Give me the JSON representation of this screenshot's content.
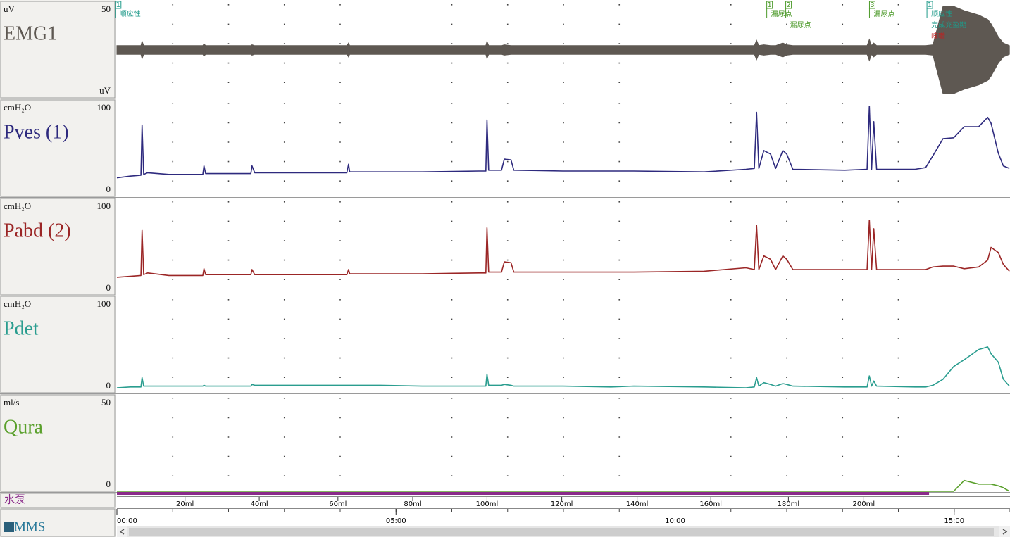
{
  "time_axis": {
    "xlim": [
      0,
      16
    ],
    "ticks": [
      {
        "value": 0,
        "label": "00:00"
      },
      {
        "value": 5,
        "label": "05:00"
      },
      {
        "value": 10,
        "label": "10:00"
      },
      {
        "value": 15,
        "label": "15:00"
      }
    ],
    "volume_ticks": [
      {
        "value": 1.22,
        "label": "20ml"
      },
      {
        "value": 2.55,
        "label": "40ml"
      },
      {
        "value": 3.96,
        "label": "60ml"
      },
      {
        "value": 5.3,
        "label": "80ml"
      },
      {
        "value": 6.63,
        "label": "100ml"
      },
      {
        "value": 7.97,
        "label": "120ml"
      },
      {
        "value": 9.32,
        "label": "140ml"
      },
      {
        "value": 10.64,
        "label": "160ml"
      },
      {
        "value": 12.03,
        "label": "180ml"
      },
      {
        "value": 13.38,
        "label": "200ml"
      }
    ],
    "grid": true
  },
  "t": [
    0.0,
    0.24,
    0.43,
    0.45,
    0.48,
    0.55,
    0.93,
    1.54,
    1.56,
    1.59,
    2.07,
    2.4,
    2.42,
    2.47,
    2.95,
    4.12,
    4.15,
    4.17,
    4.72,
    5.47,
    6.48,
    6.61,
    6.63,
    6.66,
    6.89,
    6.94,
    7.06,
    7.11,
    7.99,
    8.85,
    9.26,
    10.52,
    11.27,
    11.42,
    11.46,
    11.5,
    11.59,
    11.71,
    11.8,
    11.93,
    12.0,
    12.11,
    13.04,
    13.44,
    13.48,
    13.52,
    13.56,
    13.61,
    14.3,
    14.49,
    14.62,
    14.8,
    14.99,
    15.18,
    15.44,
    15.6,
    15.66,
    15.79,
    15.88,
    15.99
  ],
  "channels": [
    {
      "name": "EMG1",
      "unit": "uV",
      "unit_bottom": "uV",
      "color": "#5e5852",
      "style": "envelope",
      "ylim": [
        -50,
        50
      ],
      "values": [
        5,
        5,
        5,
        10,
        5,
        5,
        5,
        5,
        7,
        5,
        5,
        5,
        6,
        5,
        5,
        5,
        8,
        5,
        5,
        5,
        5,
        5,
        10,
        5,
        5,
        6,
        5,
        5,
        5,
        5,
        5,
        5,
        5,
        5,
        11,
        5,
        6,
        5,
        5,
        8,
        6,
        5,
        5,
        5,
        12,
        5,
        8,
        5,
        5,
        5,
        6,
        50,
        50,
        45,
        40,
        35,
        30,
        15,
        8,
        5
      ]
    },
    {
      "name": "Pves (1)",
      "unit": "cmH₂O",
      "color": "#2e2a7e",
      "style": "line",
      "ylim": [
        0,
        100
      ],
      "values": [
        16,
        18,
        19,
        78,
        20,
        22,
        20,
        20,
        30,
        21,
        21,
        21,
        30,
        22,
        22,
        22,
        32,
        23,
        23,
        23,
        24,
        24,
        84,
        25,
        25,
        38,
        37,
        25,
        24,
        24,
        24,
        23,
        26,
        27,
        93,
        27,
        48,
        44,
        27,
        48,
        44,
        26,
        25,
        26,
        100,
        26,
        82,
        26,
        26,
        28,
        42,
        62,
        63,
        76,
        76,
        87,
        80,
        45,
        30,
        27
      ]
    },
    {
      "name": "Pabd (2)",
      "unit": "cmH₂O",
      "color": "#9b2626",
      "style": "line",
      "ylim": [
        0,
        100
      ],
      "values": [
        15,
        16,
        17,
        70,
        18,
        20,
        17,
        17,
        25,
        18,
        18,
        18,
        24,
        18,
        18,
        18,
        24,
        19,
        19,
        19,
        20,
        20,
        73,
        21,
        21,
        33,
        32,
        21,
        21,
        21,
        21,
        22,
        26,
        24,
        76,
        24,
        40,
        36,
        24,
        40,
        36,
        24,
        24,
        24,
        82,
        24,
        72,
        24,
        24,
        24,
        27,
        28,
        28,
        25,
        27,
        35,
        50,
        44,
        30,
        22
      ]
    },
    {
      "name": "Pdet",
      "unit": "cmH₂O",
      "color": "#2a9d8f",
      "style": "line",
      "ylim": [
        0,
        100
      ],
      "values": [
        0,
        1,
        1,
        12,
        2,
        2,
        2,
        2,
        3,
        2,
        2,
        2,
        4,
        3,
        3,
        3,
        3,
        3,
        3,
        2,
        2,
        2,
        16,
        3,
        3,
        4,
        3,
        2,
        2,
        1,
        2,
        1,
        0,
        1,
        12,
        2,
        6,
        4,
        2,
        5,
        4,
        2,
        1,
        1,
        14,
        2,
        8,
        2,
        1,
        1,
        3,
        10,
        25,
        33,
        45,
        48,
        40,
        30,
        10,
        2
      ]
    },
    {
      "name": "Qura",
      "unit": "ml/s",
      "color": "#5aa02c",
      "style": "line",
      "ylim": [
        0,
        50
      ],
      "values": [
        0,
        0,
        0,
        0,
        0,
        0,
        0,
        0,
        0,
        0,
        0,
        0,
        0,
        0,
        0,
        0,
        0,
        0,
        0,
        0,
        0,
        0,
        0,
        0,
        0,
        0,
        0,
        0,
        0,
        0,
        0,
        0,
        0,
        0,
        0,
        0,
        0,
        0,
        0,
        0,
        0,
        0,
        0,
        0,
        0,
        0,
        0,
        0,
        0,
        0,
        0,
        0,
        0,
        6,
        4,
        4,
        4,
        3,
        2,
        0
      ]
    }
  ],
  "events": [
    {
      "t": 0.01,
      "marker": "1",
      "labels": [
        "顺应性"
      ],
      "label_colors": [
        "#1f9a8a"
      ],
      "color": "#1f9a8a"
    },
    {
      "t": 11.68,
      "marker": "1",
      "labels": [
        "漏尿点"
      ],
      "label_colors": [
        "#4c9a2a"
      ],
      "color": "#4c9a2a"
    },
    {
      "t": 12.02,
      "marker": "2",
      "labels": [
        "漏尿点"
      ],
      "label_colors": [
        "#4c9a2a"
      ],
      "color": "#4c9a2a"
    },
    {
      "t": 13.52,
      "marker": "3",
      "labels": [
        "漏尿点"
      ],
      "label_colors": [
        "#4c9a2a"
      ],
      "color": "#4c9a2a"
    },
    {
      "t": 14.55,
      "marker": "1",
      "labels": [
        "顺应性",
        "完成充盈期",
        "咳嗽"
      ],
      "label_colors": [
        "#1f9a8a",
        "#1f9a8a",
        "#c02020"
      ],
      "color": "#1f9a8a"
    }
  ],
  "pump": {
    "label": "水泵",
    "on": [
      0,
      14.55
    ],
    "color": "#8a2a8a"
  },
  "logo": "MMS"
}
